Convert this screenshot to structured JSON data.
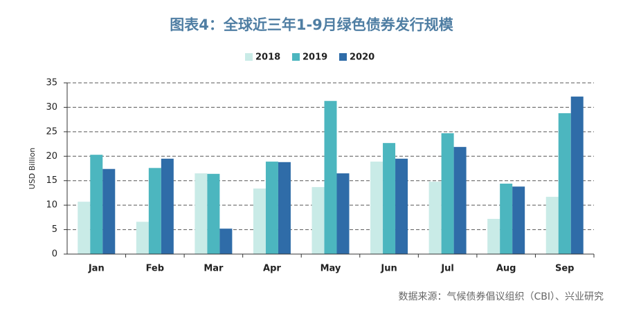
{
  "chart_data": {
    "type": "grouped_bar",
    "title": "图表4：全球近三年1-9月绿色债券发行规模",
    "y_label": "USD Billion",
    "source": "数据来源：气候债券倡议组织（CBI）、兴业研究",
    "categories": [
      "Jan",
      "Feb",
      "Mar",
      "Apr",
      "May",
      "Jun",
      "Jul",
      "Aug",
      "Sep"
    ],
    "series": [
      {
        "name": "2018",
        "color": "#c9ebe7",
        "values": [
          10.7,
          6.6,
          16.5,
          13.4,
          13.7,
          18.9,
          14.8,
          7.2,
          11.7
        ]
      },
      {
        "name": "2019",
        "color": "#4cb6bf",
        "values": [
          20.3,
          17.6,
          16.4,
          18.9,
          31.3,
          22.7,
          24.7,
          14.4,
          28.8
        ]
      },
      {
        "name": "2020",
        "color": "#2f6ca8",
        "values": [
          17.4,
          19.5,
          5.2,
          18.8,
          16.5,
          19.5,
          21.9,
          13.8,
          32.2
        ]
      }
    ],
    "ylim": [
      0,
      35
    ],
    "yticks": [
      0,
      5,
      10,
      15,
      20,
      25,
      30,
      35
    ],
    "grid": true,
    "legend": "top"
  }
}
